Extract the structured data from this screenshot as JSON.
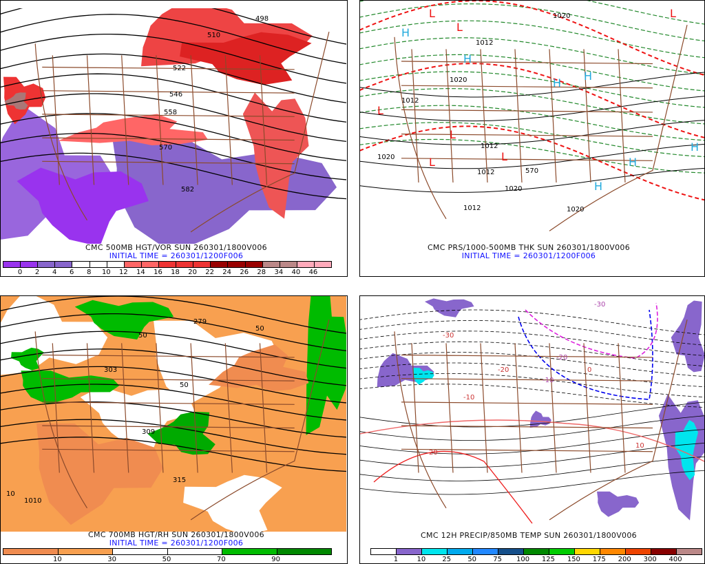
{
  "panels": [
    {
      "title": "CMC 500MB HGT/VOR SUN 260301/1800V006",
      "init": "INITIAL TIME = 260301/1200F006",
      "colorbar": {
        "colors": [
          "#9933ee",
          "#9933ee",
          "#8866cc",
          "#8866cc",
          "#ffffff",
          "#ffffff",
          "#ffffff",
          "#ff6666",
          "#ff6666",
          "#ee3333",
          "#ee3333",
          "#ee3333",
          "#990000",
          "#990000",
          "#990000",
          "#bb8888",
          "#bb8888",
          "#ffaabb",
          "#ffaabb"
        ],
        "labels": [
          "0",
          "2",
          "4",
          "6",
          "8",
          "10",
          "12",
          "14",
          "16",
          "18",
          "20",
          "22",
          "24",
          "26",
          "28",
          "34",
          "40",
          "46"
        ]
      },
      "contour_labels": [
        "498",
        "510",
        "522",
        "546",
        "558",
        "570",
        "582"
      ]
    },
    {
      "title": "CMC PRS/1000-500MB THK SUN 260301/1800V006",
      "init": "INITIAL TIME = 260301/1200F006",
      "contour_labels": [
        "1020",
        "1012",
        "1020",
        "1012",
        "1020",
        "1012",
        "1012",
        "1020",
        "1012",
        "1020",
        "570"
      ],
      "highs": "H",
      "lows": "L"
    },
    {
      "title": "CMC 700MB HGT/RH SUN 260301/1800V006",
      "init": "INITIAL TIME = 260301/1200F006",
      "colorbar": {
        "colors": [
          "#f08c50",
          "#f8a050",
          "#ffffff",
          "#ffffff",
          "#00bb00",
          "#008800"
        ],
        "labels": [
          "10",
          "30",
          "50",
          "70",
          "90"
        ]
      },
      "contour_labels": [
        "303",
        "279",
        "309",
        "315",
        "50",
        "10",
        "1010",
        "50",
        "50"
      ]
    },
    {
      "title": "CMC 12H PRECIP/850MB TEMP SUN 260301/1800V006",
      "colorbar": {
        "colors": [
          "#ffffff",
          "#8866cc",
          "#00e5ee",
          "#00aaee",
          "#2288ff",
          "#154f8a",
          "#008800",
          "#00cc00",
          "#ffd700",
          "#ff8800",
          "#ee4400",
          "#880000",
          "#bb8888"
        ],
        "labels": [
          "1",
          "10",
          "25",
          "50",
          "75",
          "100",
          "125",
          "150",
          "175",
          "200",
          "300",
          "400"
        ]
      },
      "contour_labels": [
        "-30",
        "-20",
        "-10",
        "0",
        "10",
        "20",
        "-10",
        "-20",
        "-30"
      ]
    }
  ]
}
